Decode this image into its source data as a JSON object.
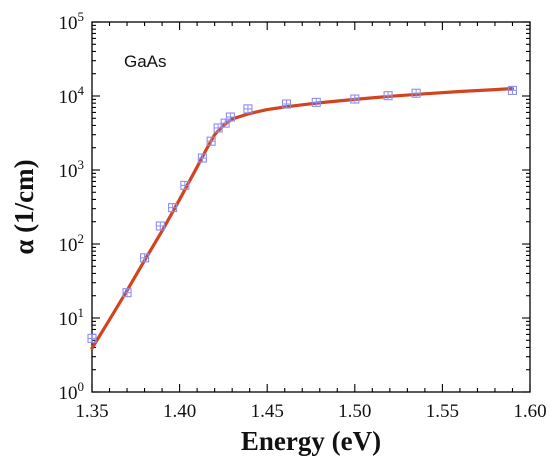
{
  "chart_data": {
    "type": "scatter",
    "title": "",
    "annotation": "GaAs",
    "xlabel": "Energy (eV)",
    "ylabel": "α (1/cm)",
    "xlim": [
      1.35,
      1.6
    ],
    "ylim": [
      1,
      100000
    ],
    "yscale": "log",
    "grid": false,
    "x_ticks": [
      {
        "value": 1.35,
        "label": "1.35"
      },
      {
        "value": 1.4,
        "label": "1.40"
      },
      {
        "value": 1.45,
        "label": "1.45"
      },
      {
        "value": 1.5,
        "label": "1.50"
      },
      {
        "value": 1.55,
        "label": "1.55"
      },
      {
        "value": 1.6,
        "label": "1.60"
      }
    ],
    "y_ticks": [
      {
        "value": 1,
        "base": "10",
        "exp": "0"
      },
      {
        "value": 10,
        "base": "10",
        "exp": "1"
      },
      {
        "value": 100,
        "base": "10",
        "exp": "2"
      },
      {
        "value": 1000,
        "base": "10",
        "exp": "3"
      },
      {
        "value": 10000,
        "base": "10",
        "exp": "4"
      },
      {
        "value": 100000,
        "base": "10",
        "exp": "5"
      }
    ],
    "series": [
      {
        "kind": "markers",
        "color": "#8e8ef0",
        "marker": "square-cross",
        "x": [
          1.35,
          1.37,
          1.38,
          1.389,
          1.396,
          1.403,
          1.413,
          1.418,
          1.422,
          1.426,
          1.429,
          1.439,
          1.461,
          1.478,
          1.5,
          1.519,
          1.535,
          1.59
        ],
        "y": [
          5.3,
          22,
          65,
          175,
          310,
          620,
          1450,
          2450,
          3700,
          4300,
          5200,
          6700,
          7800,
          8200,
          9100,
          10100,
          10900,
          11900
        ]
      },
      {
        "kind": "line",
        "color": "#d2441e",
        "x": [
          1.35,
          1.36,
          1.37,
          1.38,
          1.39,
          1.4,
          1.41,
          1.415,
          1.42,
          1.425,
          1.43,
          1.44,
          1.45,
          1.46,
          1.47,
          1.48,
          1.5,
          1.52,
          1.54,
          1.56,
          1.58,
          1.59
        ],
        "y": [
          3.9,
          9.5,
          23.5,
          60,
          150,
          400,
          1100,
          1850,
          3000,
          4000,
          4900,
          5800,
          6550,
          7100,
          7600,
          8100,
          9000,
          9900,
          10700,
          11500,
          12200,
          12600
        ]
      }
    ]
  }
}
